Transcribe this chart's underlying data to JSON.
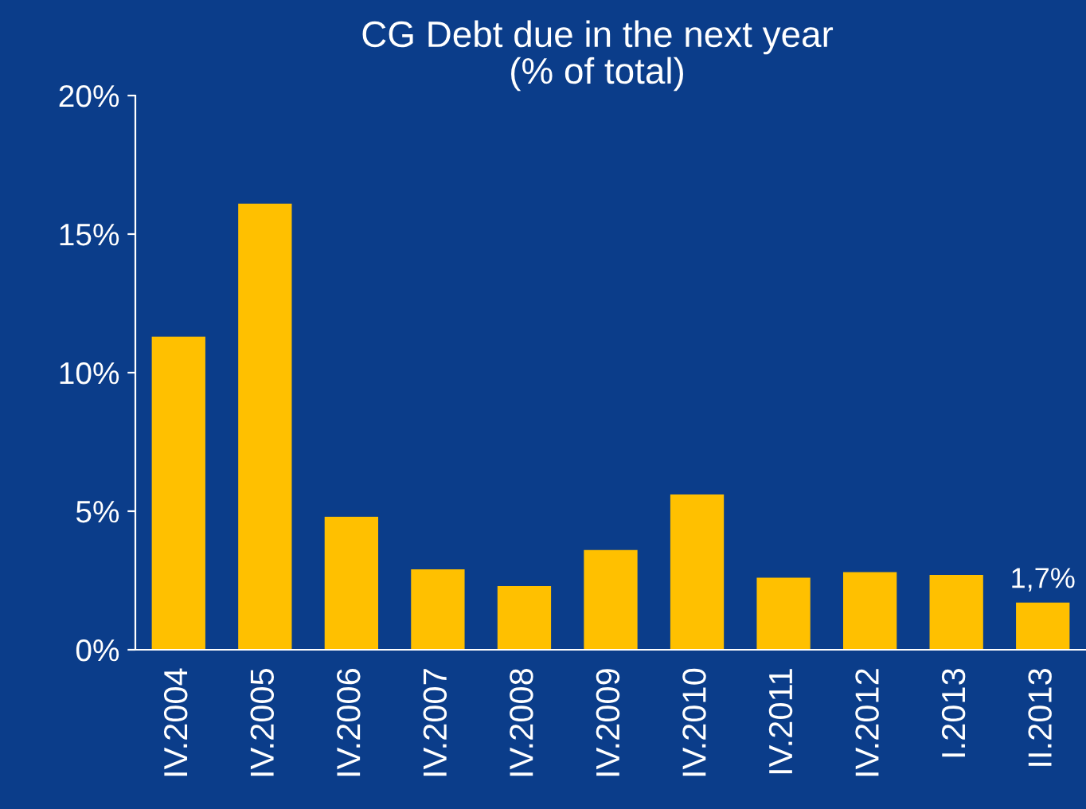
{
  "chart_data": {
    "type": "bar",
    "title": "CG Debt due in the next year\n(% of total)",
    "categories": [
      "IV.2004",
      "IV.2005",
      "IV.2006",
      "IV.2007",
      "IV.2008",
      "IV.2009",
      "IV.2010",
      "IV.2011",
      "IV.2012",
      "I.2013",
      "II.2013"
    ],
    "values": [
      11.3,
      16.1,
      4.8,
      2.9,
      2.3,
      3.6,
      5.6,
      2.6,
      2.8,
      2.7,
      1.7
    ],
    "value_labels": [
      null,
      null,
      null,
      null,
      null,
      null,
      null,
      null,
      null,
      null,
      "1,7%"
    ],
    "color": "#ffc000",
    "ylim": [
      0,
      20
    ],
    "yticks": [
      {
        "value": 0,
        "label": "0%"
      },
      {
        "value": 5,
        "label": "5%"
      },
      {
        "value": 10,
        "label": "10%"
      },
      {
        "value": 15,
        "label": "15%"
      },
      {
        "value": 20,
        "label": "20%"
      }
    ],
    "grid": false,
    "legend": false
  }
}
